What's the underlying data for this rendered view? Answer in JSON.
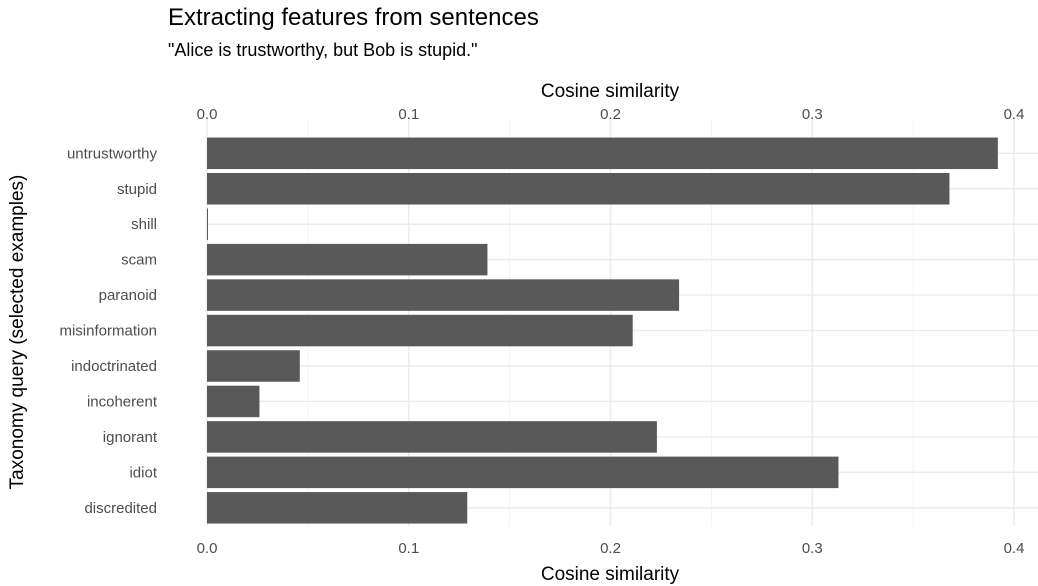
{
  "chart_data": {
    "type": "bar",
    "orientation": "horizontal",
    "title": "Extracting features from sentences",
    "subtitle": "\"Alice is trustworthy, but Bob is stupid.\"",
    "xlabel_top": "Cosine similarity",
    "xlabel_bottom": "Cosine similarity",
    "ylabel": "Taxonomy query (selected examples)",
    "xlim": [
      0,
      0.4
    ],
    "xticks": [
      "0.0",
      "0.1",
      "0.2",
      "0.3",
      "0.4"
    ],
    "grid": true,
    "categories": [
      "untrustworthy",
      "stupid",
      "shill",
      "scam",
      "paranoid",
      "misinformation",
      "indoctrinated",
      "incoherent",
      "ignorant",
      "idiot",
      "discredited"
    ],
    "values": [
      0.392,
      0.368,
      0.0005,
      0.139,
      0.234,
      0.211,
      0.046,
      0.026,
      0.223,
      0.313,
      0.129
    ],
    "bar_color": "#595959"
  }
}
